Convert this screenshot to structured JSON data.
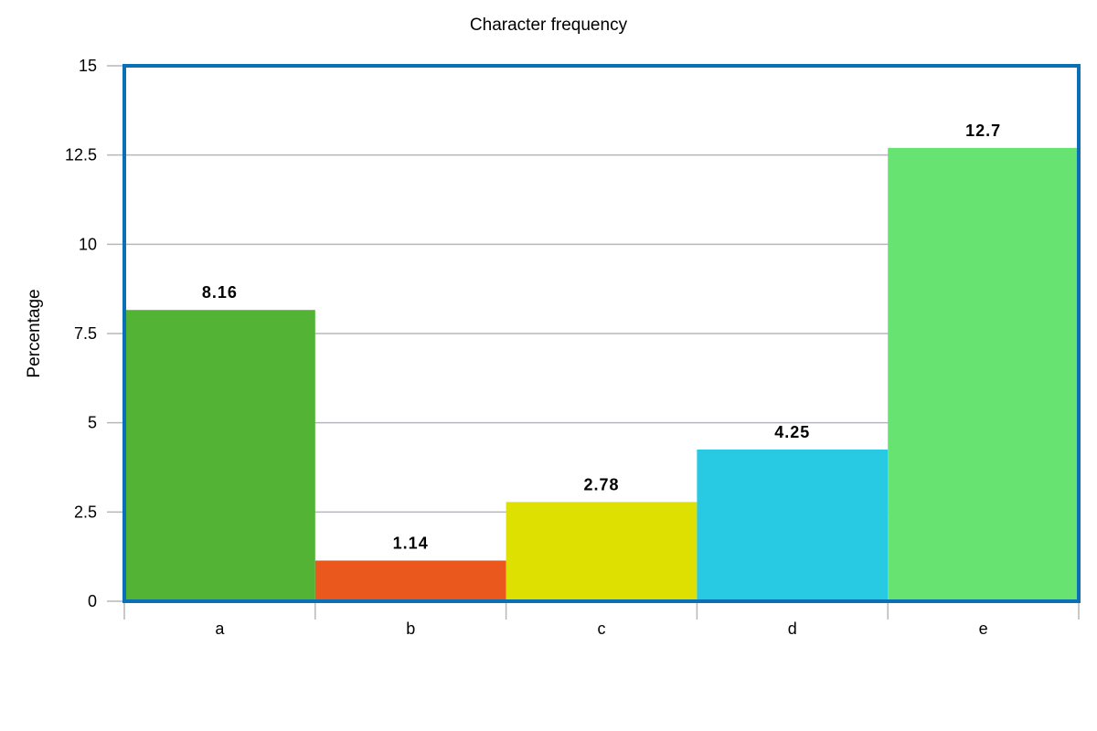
{
  "chart_data": {
    "type": "bar",
    "title": "Character frequency",
    "xlabel": "",
    "ylabel": "Percentage",
    "categories": [
      "a",
      "b",
      "c",
      "d",
      "e"
    ],
    "values": [
      8.16,
      1.14,
      2.78,
      4.25,
      12.7
    ],
    "value_labels": [
      "8.16",
      "1.14",
      "2.78",
      "4.25",
      "12.7"
    ],
    "colors": [
      "#52b334",
      "#ea581e",
      "#dde000",
      "#27c9e3",
      "#66e370"
    ],
    "ylim": [
      0,
      15
    ],
    "yticks": [
      0,
      2.5,
      5,
      7.5,
      10,
      12.5,
      15
    ],
    "ytick_labels": [
      "0",
      "2.5",
      "5",
      "7.5",
      "10",
      "12.5",
      "15"
    ],
    "grid": true,
    "legend": "none",
    "frame_color": "#0a6fb5"
  }
}
